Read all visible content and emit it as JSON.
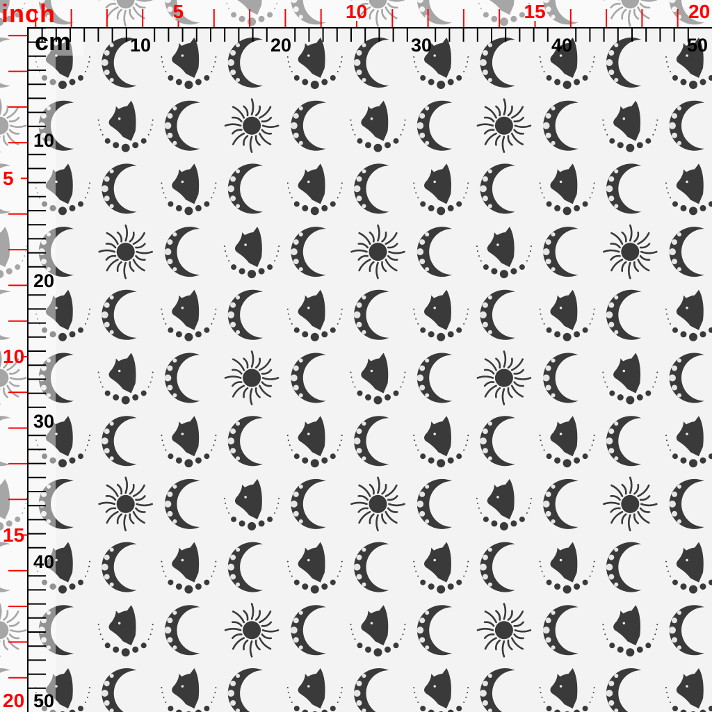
{
  "ruler": {
    "inch_title": "inch",
    "cm_title": "cm",
    "inch_labels": [
      "5",
      "10",
      "15",
      "20"
    ],
    "cm_labels": [
      "10",
      "20",
      "30",
      "40",
      "50"
    ],
    "inch_color": "#ff0000",
    "cm_color": "#000000"
  },
  "pattern": {
    "motif_color": "#3a3a3a",
    "background_color": "#f3f3f3",
    "row_A": [
      "cat",
      "moon"
    ],
    "row_B": [
      "moon",
      "cat",
      "moon",
      "sun"
    ],
    "row_C": [
      "moon",
      "sun",
      "moon",
      "cat"
    ],
    "row_sequence": [
      "A",
      "B",
      "A",
      "C"
    ]
  }
}
